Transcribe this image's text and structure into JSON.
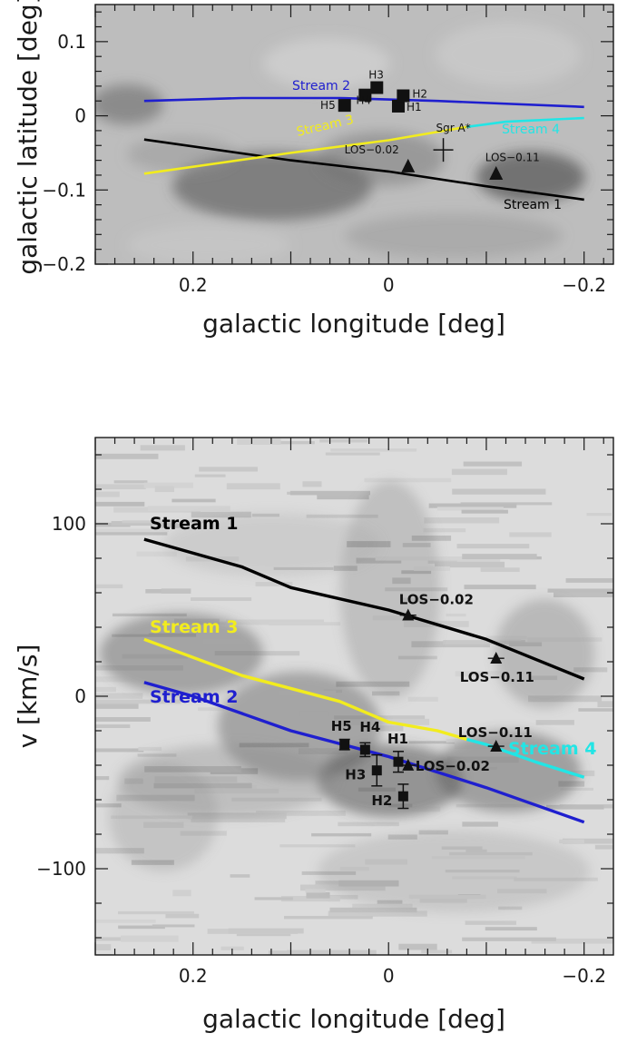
{
  "chart_data": [
    {
      "type": "scatter",
      "panel": "top",
      "xlabel": "galactic longitude [deg]",
      "ylabel": "galactic latitude [deg]",
      "xlim": [
        0.3,
        -0.23
      ],
      "ylim": [
        -0.2,
        0.15
      ],
      "xticks": [
        0.2,
        0,
        -0.2
      ],
      "xtick_labels": [
        "0.2",
        "0",
        "−0.2"
      ],
      "yticks": [
        0.1,
        0,
        -0.1,
        -0.2
      ],
      "ytick_labels": [
        "0.1",
        "0",
        "−0.1",
        "−0.2"
      ],
      "grid": false,
      "background": "grayscale intensity map",
      "series": [
        {
          "name": "Stream 1",
          "color": "#000000",
          "points": [
            [
              0.25,
              -0.032
            ],
            [
              0.1,
              -0.06
            ],
            [
              0.0,
              -0.075
            ],
            [
              -0.1,
              -0.095
            ],
            [
              -0.2,
              -0.113
            ]
          ]
        },
        {
          "name": "Stream 2",
          "color": "#1f1fcf",
          "points": [
            [
              0.25,
              0.02
            ],
            [
              0.15,
              0.024
            ],
            [
              0.05,
              0.024
            ],
            [
              -0.05,
              0.02
            ],
            [
              -0.2,
              0.012
            ]
          ]
        },
        {
          "name": "Stream 3",
          "color": "#f2ec1e",
          "points": [
            [
              0.25,
              -0.078
            ],
            [
              0.1,
              -0.05
            ],
            [
              0.0,
              -0.033
            ],
            [
              -0.08,
              -0.015
            ]
          ]
        },
        {
          "name": "Stream 4",
          "color": "#22e5e5",
          "points": [
            [
              -0.08,
              -0.015
            ],
            [
              -0.12,
              -0.008
            ],
            [
              -0.2,
              -0.003
            ]
          ]
        }
      ],
      "squares": [
        {
          "label": "H1",
          "x": -0.01,
          "y": 0.013
        },
        {
          "label": "H2",
          "x": -0.015,
          "y": 0.027
        },
        {
          "label": "H3",
          "x": 0.012,
          "y": 0.038
        },
        {
          "label": "H4",
          "x": 0.024,
          "y": 0.028
        },
        {
          "label": "H5",
          "x": 0.045,
          "y": 0.014
        }
      ],
      "triangles": [
        {
          "label": "LOS−0.02",
          "x": -0.02,
          "y": -0.068
        },
        {
          "label": "LOS−0.11",
          "x": -0.11,
          "y": -0.078
        }
      ],
      "crosses": [
        {
          "label": "Sgr A*",
          "x": -0.056,
          "y": -0.046
        }
      ]
    },
    {
      "type": "scatter",
      "panel": "bottom",
      "xlabel": "galactic longitude [deg]",
      "ylabel": "v [km/s]",
      "xlim": [
        0.3,
        -0.23
      ],
      "ylim": [
        -150,
        150
      ],
      "xticks": [
        0.2,
        0,
        -0.2
      ],
      "xtick_labels": [
        "0.2",
        "0",
        "−0.2"
      ],
      "yticks": [
        100,
        0,
        -100
      ],
      "ytick_labels": [
        "100",
        "0",
        "−100"
      ],
      "grid": false,
      "background": "grayscale intensity map",
      "series": [
        {
          "name": "Stream 1",
          "color": "#000000",
          "points": [
            [
              0.25,
              91
            ],
            [
              0.15,
              75
            ],
            [
              0.1,
              63
            ],
            [
              0.0,
              50
            ],
            [
              -0.1,
              33
            ],
            [
              -0.2,
              10
            ]
          ]
        },
        {
          "name": "Stream 3",
          "color": "#f2ec1e",
          "points": [
            [
              0.25,
              33
            ],
            [
              0.15,
              12
            ],
            [
              0.05,
              -3
            ],
            [
              0.0,
              -15
            ],
            [
              -0.05,
              -20
            ],
            [
              -0.08,
              -25
            ]
          ]
        },
        {
          "name": "Stream 2",
          "color": "#1f1fcf",
          "points": [
            [
              0.25,
              8
            ],
            [
              0.2,
              0
            ],
            [
              0.1,
              -20
            ],
            [
              0.0,
              -35
            ],
            [
              -0.1,
              -53
            ],
            [
              -0.2,
              -73
            ]
          ]
        },
        {
          "name": "Stream 4",
          "color": "#22e5e5",
          "points": [
            [
              -0.08,
              -25
            ],
            [
              -0.1,
              -28
            ],
            [
              -0.15,
              -38
            ],
            [
              -0.2,
              -47
            ]
          ]
        }
      ],
      "squares": [
        {
          "label": "H1",
          "x": -0.01,
          "y": -38,
          "err": 6
        },
        {
          "label": "H2",
          "x": -0.015,
          "y": -58,
          "err": 7
        },
        {
          "label": "H3",
          "x": 0.012,
          "y": -43,
          "err": 9
        },
        {
          "label": "H4",
          "x": 0.024,
          "y": -31,
          "err": 4
        },
        {
          "label": "H5",
          "x": 0.045,
          "y": -28,
          "err": 3
        }
      ],
      "triangles": [
        {
          "label": "LOS−0.02",
          "x": -0.02,
          "y": 47
        },
        {
          "label": "LOS−0.02",
          "x": -0.02,
          "y": -40
        },
        {
          "label": "LOS−0.11",
          "x": -0.11,
          "y": 22
        },
        {
          "label": "LOS−0.11",
          "x": -0.11,
          "y": -29
        }
      ]
    }
  ]
}
